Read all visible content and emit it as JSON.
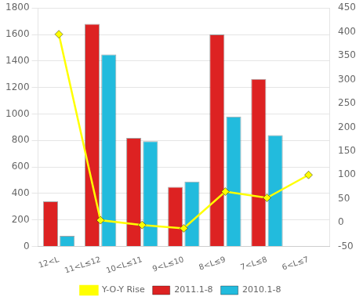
{
  "chart_data": {
    "type": "bar",
    "categories": [
      "12<L",
      "11<L≤12",
      "10<L≤11",
      "9<L≤10",
      "8<L≤9",
      "7<L≤8",
      "6<L≤7"
    ],
    "series": [
      {
        "name": "2011.1-8",
        "color": "#DD2222",
        "values": [
          340,
          1680,
          820,
          450,
          1600,
          1265,
          0
        ]
      },
      {
        "name": "2010.1-8",
        "color": "#22BBDD",
        "values": [
          80,
          1450,
          795,
          490,
          980,
          840,
          0
        ]
      },
      {
        "name": "Y-O-Y Rise",
        "type": "line",
        "color": "#FFFF00",
        "marker": "diamond",
        "axis": "y2",
        "values": [
          395,
          5,
          -5,
          -12,
          65,
          52,
          100
        ]
      }
    ],
    "ylim": [
      0,
      1800
    ],
    "yticks": [
      0,
      200,
      400,
      600,
      800,
      1000,
      1200,
      1400,
      1600,
      1800
    ],
    "y2lim": [
      -50,
      450
    ],
    "y2ticks": [
      -50,
      0,
      50,
      100,
      150,
      200,
      250,
      300,
      350,
      400,
      450
    ],
    "grid": true,
    "legend": "bottom"
  }
}
